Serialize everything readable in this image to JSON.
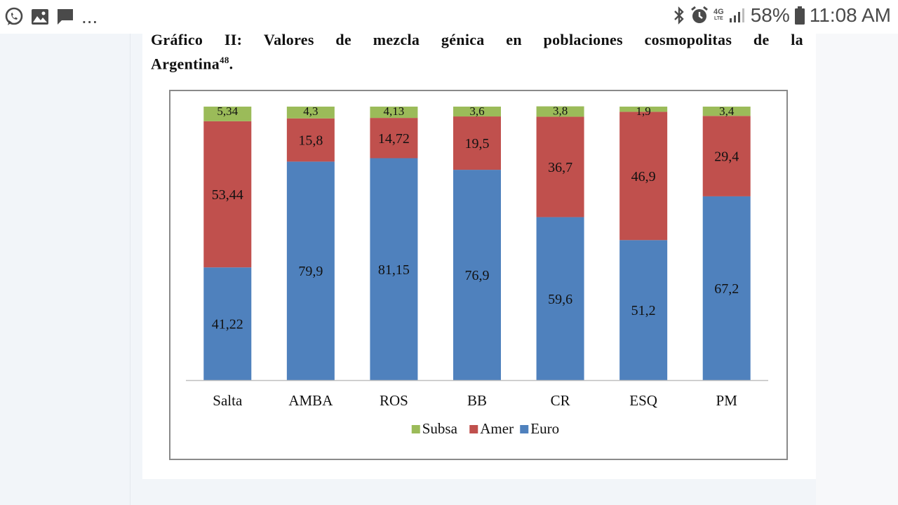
{
  "status_bar": {
    "icons": [
      "whatsapp-icon",
      "image-icon",
      "message-icon"
    ],
    "more": "...",
    "network": "4G",
    "network_sub": "LTE",
    "battery": "58%",
    "time": "11:08 AM"
  },
  "document": {
    "title_words": [
      "Gráfico",
      "II:",
      "Valores",
      "de",
      "mezcla",
      "génica",
      "en",
      "poblaciones",
      "cosmopolitas",
      "de",
      "la"
    ],
    "title_line2": "Argentina",
    "title_sup": "48",
    "title_end": "."
  },
  "chart_data": {
    "type": "bar",
    "stacked": true,
    "categories": [
      "Salta",
      "AMBA",
      "ROS",
      "BB",
      "CR",
      "ESQ",
      "PM"
    ],
    "series": [
      {
        "name": "Euro",
        "color": "#4f81bd",
        "values": [
          41.22,
          79.9,
          81.15,
          76.9,
          59.6,
          51.2,
          67.2
        ],
        "labels": [
          "41,22",
          "79,9",
          "81,15",
          "76,9",
          "59,6",
          "51,2",
          "67,2"
        ]
      },
      {
        "name": "Amer",
        "color": "#c0504d",
        "values": [
          53.44,
          15.8,
          14.72,
          19.5,
          36.7,
          46.9,
          29.4
        ],
        "labels": [
          "53,44",
          "15,8",
          "14,72",
          "19,5",
          "36,7",
          "46,9",
          "29,4"
        ]
      },
      {
        "name": "Subsa",
        "color": "#9bbb59",
        "values": [
          5.34,
          4.3,
          4.13,
          3.6,
          3.8,
          1.9,
          3.4
        ],
        "labels": [
          "5,34",
          "4,3",
          "4,13",
          "3,6",
          "3,8",
          "1,9",
          "3,4"
        ]
      }
    ],
    "legend_order": [
      "Subsa",
      "Amer",
      "Euro"
    ],
    "legend_position": "bottom",
    "ylim": [
      0,
      100
    ],
    "gridlines": false
  }
}
